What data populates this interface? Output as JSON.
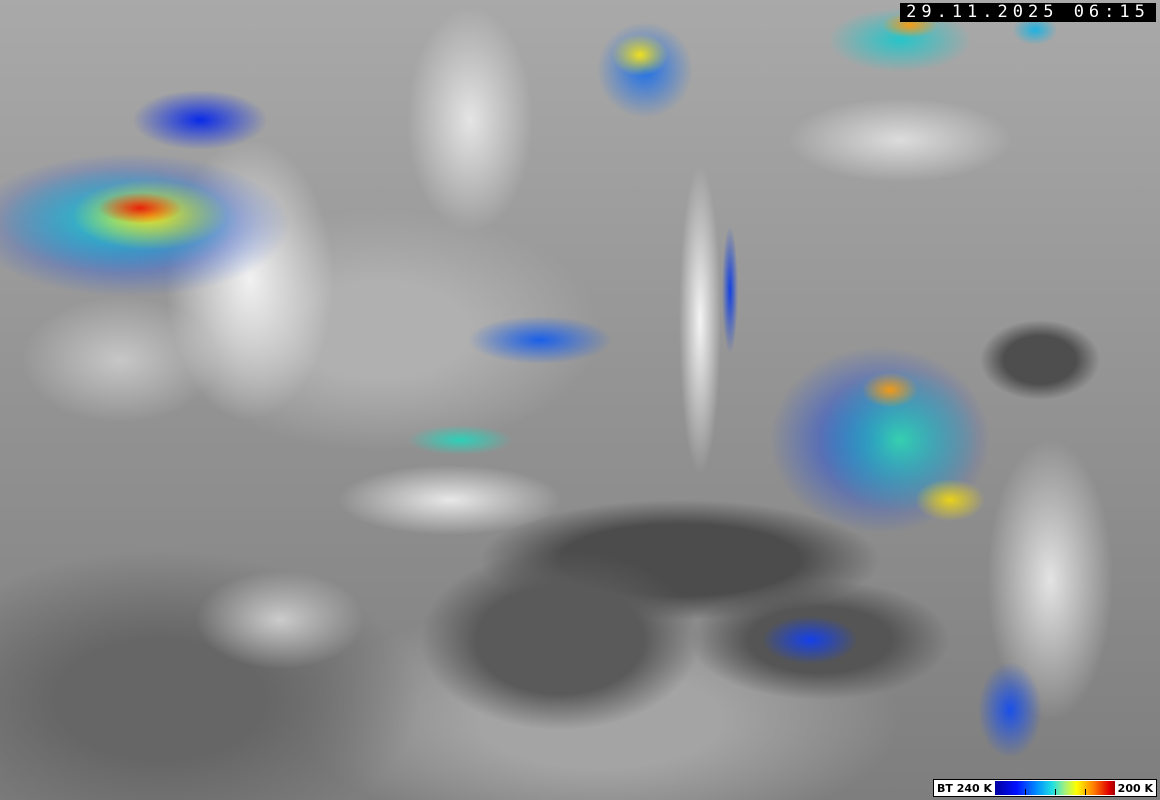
{
  "image": {
    "type": "infrared satellite image",
    "timestamp": "29.11.2025 06:15"
  },
  "legend": {
    "left_label": "BT 240 K",
    "right_label": "200 K",
    "colors": [
      "#0000a0",
      "#0010ff",
      "#0090ff",
      "#20e0e0",
      "#a0f080",
      "#ffff00",
      "#ff8000",
      "#e00000",
      "#a00000"
    ]
  }
}
